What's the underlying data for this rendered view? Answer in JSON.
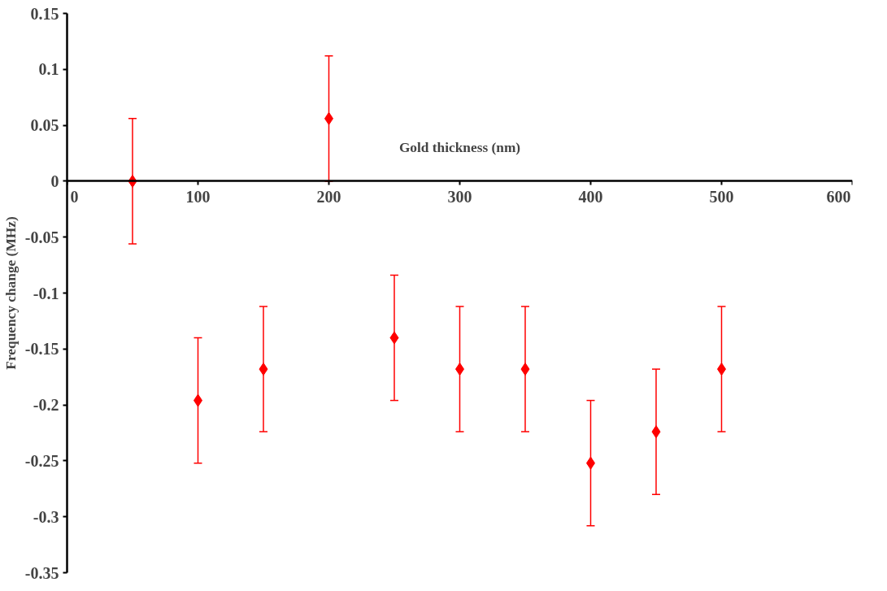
{
  "chart_data": {
    "type": "scatter",
    "xlabel": "Gold thickness (nm)",
    "ylabel": "Frequency change (MHz)",
    "x": [
      50,
      100,
      150,
      200,
      250,
      300,
      350,
      400,
      450,
      500
    ],
    "series": [
      {
        "color": "#ff0000",
        "values": [
          0,
          -0.196,
          -0.168,
          0.056,
          -0.14,
          -0.168,
          -0.168,
          -0.252,
          -0.224,
          -0.168
        ],
        "errors": [
          0.056,
          0.056,
          0.056,
          0.056,
          0.056,
          0.056,
          0.056,
          0.056,
          0.056,
          0.056
        ]
      }
    ],
    "marker": "diamond",
    "xlim": [
      0,
      600
    ],
    "xticks": [
      0,
      100,
      200,
      300,
      400,
      500,
      600
    ],
    "ylim": [
      -0.35,
      0.15
    ],
    "yticks": [
      -0.35,
      -0.3,
      -0.25,
      -0.2,
      -0.15,
      -0.1,
      -0.05,
      0,
      0.05,
      0.1,
      0.15
    ],
    "grid": false
  }
}
